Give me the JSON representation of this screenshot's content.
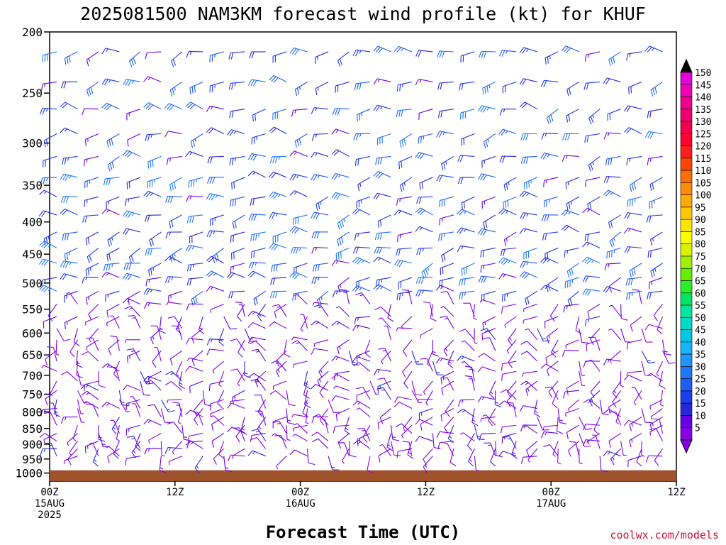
{
  "chart_data": {
    "type": "wind-barb-time-height",
    "title": "2025081500 NAM3KM forecast wind profile (kt) for KHUF",
    "xlabel": "Forecast Time (UTC)",
    "pressure_levels_hPa": [
      200,
      250,
      300,
      350,
      400,
      450,
      500,
      550,
      600,
      650,
      700,
      750,
      800,
      850,
      900,
      950,
      1000
    ],
    "x_ticks": [
      {
        "hour": 0,
        "lines": [
          "00Z",
          "15AUG",
          "2025"
        ]
      },
      {
        "hour": 12,
        "lines": [
          "12Z"
        ]
      },
      {
        "hour": 24,
        "lines": [
          "00Z",
          "16AUG"
        ]
      },
      {
        "hour": 36,
        "lines": [
          "12Z"
        ]
      },
      {
        "hour": 48,
        "lines": [
          "00Z",
          "17AUG"
        ]
      },
      {
        "hour": 60,
        "lines": [
          "12Z"
        ]
      }
    ],
    "xlim": [
      0,
      60
    ],
    "ylim": [
      1030,
      200
    ],
    "surface_pressure": 990,
    "colorbar": {
      "levels": [
        5,
        10,
        15,
        20,
        25,
        30,
        35,
        40,
        45,
        50,
        55,
        60,
        65,
        70,
        75,
        80,
        85,
        90,
        95,
        100,
        105,
        110,
        115,
        120,
        125,
        130,
        135,
        140,
        145,
        150
      ],
      "colors": [
        "#8a00e6",
        "#6a00e6",
        "#2828d8",
        "#1e3cf0",
        "#1e5ef5",
        "#1e78ff",
        "#1e96ff",
        "#14b4ff",
        "#00c8e6",
        "#00dcc8",
        "#00e6a0",
        "#00e664",
        "#28f028",
        "#64f000",
        "#a0f000",
        "#dcf000",
        "#ffff00",
        "#ffe600",
        "#ffc800",
        "#ffaa00",
        "#ff8c00",
        "#ff6e00",
        "#ff4600",
        "#ff1e1e",
        "#ff0032",
        "#f00050",
        "#f0006e",
        "#f0008c",
        "#f000b4",
        "#e600dc"
      ],
      "top_color": "#000000"
    },
    "credit": "coolwx.com/models"
  }
}
